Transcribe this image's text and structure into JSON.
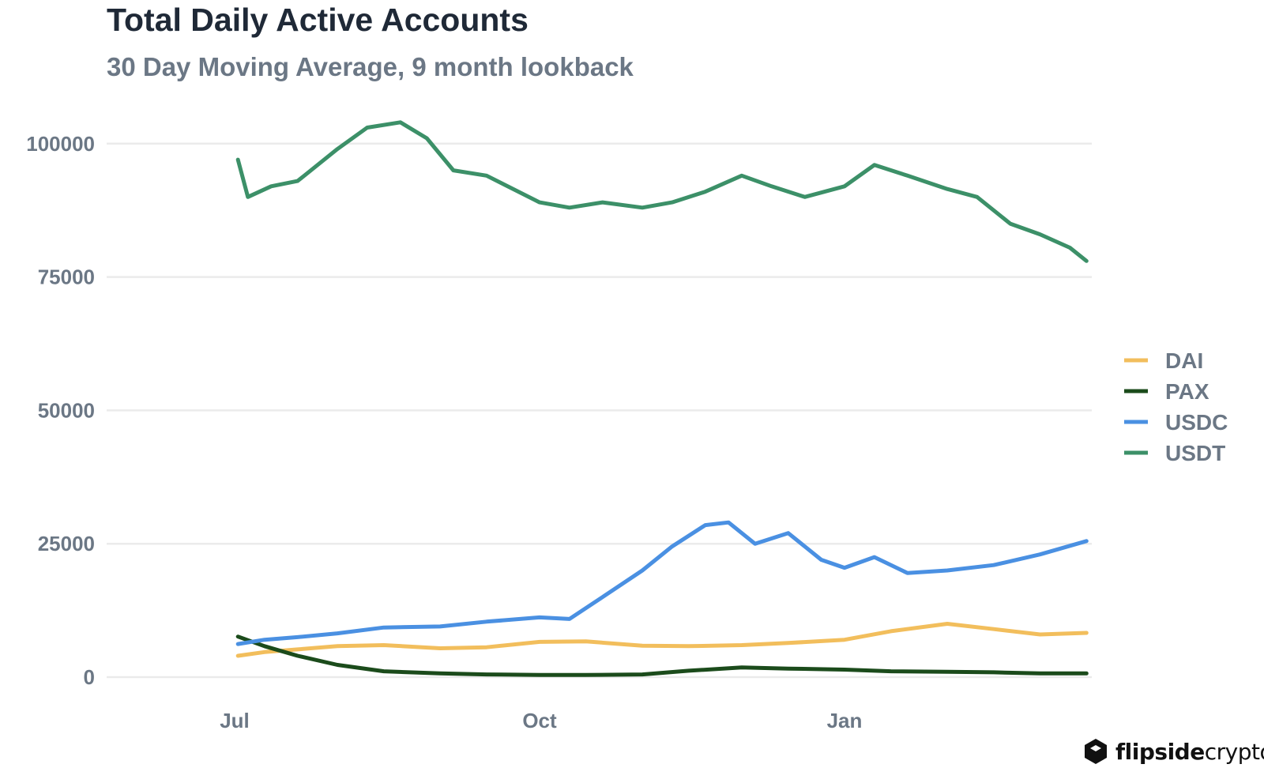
{
  "chart_data": {
    "type": "line",
    "title": "Total Daily Active Accounts",
    "subtitle": "30 Day Moving Average, 9 month lookback",
    "xlabel": "",
    "ylabel": "",
    "x_ticks": [
      "Jul",
      "Oct",
      "Jan"
    ],
    "y_ticks": [
      "0",
      "25000",
      "50000",
      "75000",
      "100000"
    ],
    "ylim": [
      0,
      110000
    ],
    "grid": true,
    "legend_position": "right",
    "series": [
      {
        "name": "DAI",
        "color": "#F2BE5C",
        "x": [
          "2020-07-02",
          "2020-07-10",
          "2020-07-20",
          "2020-08-01",
          "2020-08-15",
          "2020-09-01",
          "2020-09-15",
          "2020-10-01",
          "2020-10-15",
          "2020-11-01",
          "2020-11-15",
          "2020-12-01",
          "2020-12-15",
          "2021-01-01",
          "2021-01-15",
          "2021-02-01",
          "2021-02-15",
          "2021-03-01",
          "2021-03-15"
        ],
        "y": [
          4000,
          4700,
          5200,
          5800,
          6000,
          5400,
          5600,
          6600,
          6700,
          5900,
          5800,
          6000,
          6400,
          7000,
          8600,
          10000,
          9000,
          8000,
          8300
        ]
      },
      {
        "name": "PAX",
        "color": "#1B4B1B",
        "x": [
          "2020-07-02",
          "2020-07-10",
          "2020-07-20",
          "2020-08-01",
          "2020-08-15",
          "2020-09-01",
          "2020-09-15",
          "2020-10-01",
          "2020-10-15",
          "2020-11-01",
          "2020-11-15",
          "2020-12-01",
          "2020-12-15",
          "2021-01-01",
          "2021-01-15",
          "2021-02-01",
          "2021-02-15",
          "2021-03-01",
          "2021-03-15"
        ],
        "y": [
          7600,
          5800,
          4000,
          2300,
          1100,
          700,
          500,
          400,
          400,
          500,
          1200,
          1800,
          1600,
          1400,
          1100,
          1000,
          900,
          700,
          700
        ]
      },
      {
        "name": "USDC",
        "color": "#4A90E2",
        "x": [
          "2020-07-02",
          "2020-07-10",
          "2020-07-20",
          "2020-08-01",
          "2020-08-15",
          "2020-09-01",
          "2020-09-15",
          "2020-10-01",
          "2020-10-10",
          "2020-10-20",
          "2020-11-01",
          "2020-11-10",
          "2020-11-20",
          "2020-11-27",
          "2020-12-05",
          "2020-12-15",
          "2020-12-25",
          "2021-01-01",
          "2021-01-10",
          "2021-01-20",
          "2021-02-01",
          "2021-02-15",
          "2021-03-01",
          "2021-03-15"
        ],
        "y": [
          6200,
          7000,
          7500,
          8200,
          9300,
          9500,
          10400,
          11200,
          10900,
          15000,
          20000,
          24500,
          28500,
          29000,
          25000,
          27000,
          22000,
          20500,
          22500,
          19500,
          20000,
          21000,
          23000,
          25500
        ]
      },
      {
        "name": "USDT",
        "color": "#3C9068",
        "x": [
          "2020-07-02",
          "2020-07-05",
          "2020-07-12",
          "2020-07-20",
          "2020-08-01",
          "2020-08-10",
          "2020-08-20",
          "2020-08-28",
          "2020-09-05",
          "2020-09-15",
          "2020-10-01",
          "2020-10-10",
          "2020-10-20",
          "2020-11-01",
          "2020-11-10",
          "2020-11-20",
          "2020-12-01",
          "2020-12-10",
          "2020-12-20",
          "2021-01-01",
          "2021-01-10",
          "2021-01-20",
          "2021-02-01",
          "2021-02-10",
          "2021-02-20",
          "2021-03-01",
          "2021-03-10",
          "2021-03-15"
        ],
        "y": [
          97000,
          90000,
          92000,
          93000,
          99000,
          103000,
          104000,
          101000,
          95000,
          94000,
          89000,
          88000,
          89000,
          88000,
          89000,
          91000,
          94000,
          92000,
          90000,
          92000,
          96000,
          94000,
          91500,
          90000,
          85000,
          83000,
          80500,
          78000
        ]
      }
    ]
  },
  "brand": {
    "bold": "flipside",
    "light": "crypto"
  }
}
